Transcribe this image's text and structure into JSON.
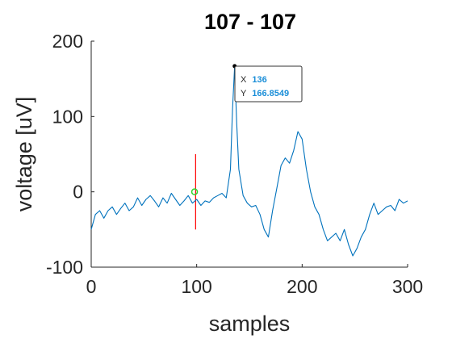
{
  "chart_data": {
    "type": "line",
    "title": "107 - 107",
    "xlabel": "samples",
    "ylabel": "voltage [uV]",
    "xlim": [
      0,
      300
    ],
    "ylim": [
      -100,
      200
    ],
    "xticks": [
      0,
      100,
      200,
      300
    ],
    "yticks": [
      -100,
      0,
      100,
      200
    ],
    "grid": false,
    "series": [
      {
        "color": "#0072bd",
        "x": [
          0,
          4,
          8,
          12,
          16,
          20,
          24,
          28,
          32,
          36,
          40,
          44,
          48,
          52,
          56,
          60,
          64,
          68,
          72,
          76,
          80,
          84,
          88,
          92,
          96,
          100,
          104,
          108,
          112,
          116,
          120,
          124,
          128,
          132,
          134,
          136,
          138,
          140,
          144,
          148,
          152,
          156,
          160,
          164,
          168,
          172,
          176,
          180,
          184,
          188,
          192,
          196,
          200,
          204,
          208,
          212,
          216,
          220,
          224,
          228,
          232,
          236,
          240,
          244,
          248,
          252,
          256,
          260,
          264,
          268,
          272,
          276,
          280,
          284,
          288,
          292,
          296,
          300
        ],
        "values": [
          -50,
          -30,
          -25,
          -35,
          -25,
          -20,
          -30,
          -22,
          -15,
          -25,
          -20,
          -8,
          -18,
          -10,
          -5,
          -12,
          -20,
          -8,
          -15,
          -2,
          -10,
          -18,
          -12,
          -5,
          -15,
          -10,
          -18,
          -12,
          -14,
          -8,
          -5,
          -2,
          -8,
          30,
          110,
          166.85,
          90,
          30,
          -5,
          -15,
          -20,
          -18,
          -30,
          -50,
          -60,
          -25,
          5,
          35,
          45,
          38,
          55,
          80,
          70,
          30,
          0,
          -20,
          -30,
          -50,
          -65,
          -60,
          -55,
          -65,
          -50,
          -70,
          -85,
          -75,
          -60,
          -50,
          -30,
          -15,
          -30,
          -25,
          -20,
          -18,
          -25,
          -10,
          -15,
          -12
        ]
      }
    ],
    "event_marker": {
      "x": 99,
      "ymin": -50,
      "ymax": 50,
      "color": "#ff0000"
    },
    "highlight_point": {
      "x": 98,
      "y": 0,
      "color": "#2fd32f"
    },
    "datatip": {
      "x_label": "X",
      "x_value": "136",
      "y_label": "Y",
      "y_value": "166.8549",
      "point_x": 136,
      "point_y": 166.8549
    }
  }
}
